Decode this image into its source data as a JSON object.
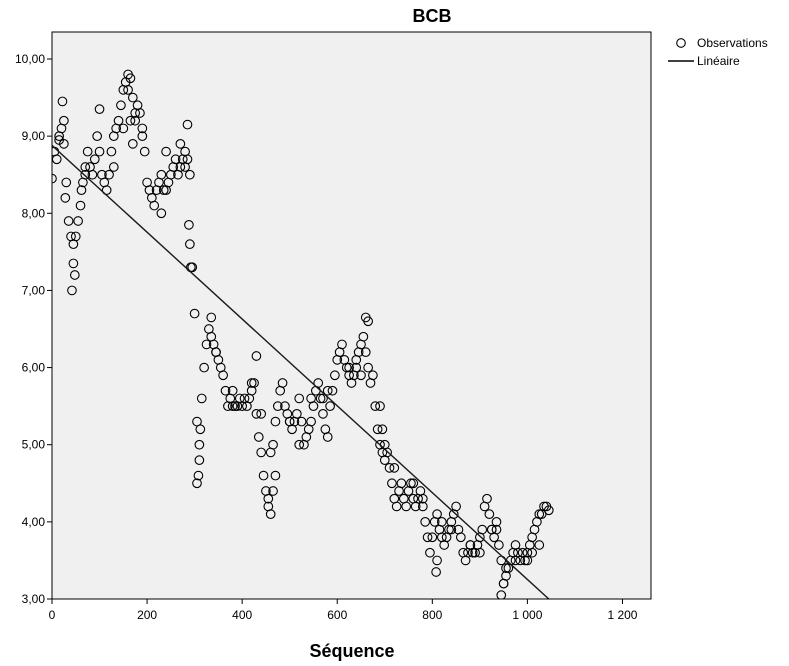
{
  "chart_data": {
    "type": "scatter",
    "title": "BCB",
    "xlabel": "Séquence",
    "ylabel": "",
    "xlim": [
      0,
      1260
    ],
    "ylim": [
      3.0,
      10.35
    ],
    "x_ticks": [
      0,
      200,
      400,
      600,
      800,
      1000,
      1200
    ],
    "x_tick_labels": [
      "0",
      "200",
      "400",
      "600",
      "800",
      "1 000",
      "1 200"
    ],
    "y_ticks": [
      3,
      4,
      5,
      6,
      7,
      8,
      9,
      10
    ],
    "y_tick_labels": [
      "3,00",
      "4,00",
      "5,00",
      "6,00",
      "7,00",
      "8,00",
      "9,00",
      "10,00"
    ],
    "grid": false,
    "legend_position": "right",
    "legend": {
      "observations": "Observations",
      "linear": "Linéaire"
    },
    "colors": {
      "plot_background": "#f0f0f0",
      "marker": "#000000",
      "fit_line": "#1a1a1a"
    },
    "series": [
      {
        "name": "Observations",
        "kind": "points",
        "x": [
          0,
          5,
          10,
          15,
          20,
          25,
          30,
          35,
          40,
          45,
          50,
          55,
          60,
          65,
          70,
          75,
          80,
          85,
          90,
          95,
          100,
          105,
          110,
          115,
          120,
          125,
          130,
          135,
          140,
          145,
          150,
          155,
          160,
          165,
          170,
          175,
          180,
          185,
          190,
          195,
          200,
          205,
          210,
          215,
          220,
          225,
          230,
          235,
          240,
          245,
          250,
          255,
          260,
          265,
          270,
          275,
          280,
          285,
          290,
          295,
          300,
          305,
          310,
          315,
          320,
          325,
          330,
          335,
          340,
          345,
          350,
          355,
          360,
          365,
          370,
          375,
          380,
          385,
          390,
          395,
          400,
          405,
          410,
          415,
          420,
          425,
          430,
          435,
          440,
          445,
          450,
          455,
          460,
          465,
          470,
          475,
          480,
          485,
          490,
          495,
          500,
          505,
          510,
          515,
          520,
          525,
          530,
          535,
          540,
          545,
          550,
          555,
          560,
          565,
          570,
          575,
          580,
          585,
          590,
          595,
          600,
          605,
          610,
          615,
          620,
          625,
          630,
          635,
          640,
          645,
          650,
          655,
          660,
          665,
          670,
          675,
          680,
          685,
          690,
          695,
          700,
          705,
          710,
          715,
          720,
          725,
          730,
          735,
          740,
          745,
          750,
          755,
          760,
          765,
          770,
          775,
          780,
          785,
          790,
          795,
          800,
          805,
          810,
          815,
          820,
          825,
          830,
          835,
          840,
          845,
          850,
          855,
          860,
          865,
          870,
          875,
          880,
          885,
          890,
          895,
          900,
          905,
          910,
          915,
          920,
          925,
          930,
          935,
          940,
          945,
          950,
          955,
          960,
          965,
          970,
          975,
          980,
          985,
          990,
          995,
          1000,
          1005,
          1010,
          1015,
          1020,
          1025,
          1030,
          1035,
          1040,
          1045,
          22,
          25,
          28,
          42,
          45,
          48,
          100,
          160,
          165,
          170,
          285,
          288,
          290,
          292,
          305,
          308,
          310,
          312,
          430,
          440,
          455,
          460,
          465,
          470,
          660,
          665,
          690,
          695,
          808,
          810,
          945,
          950,
          955,
          15,
          62,
          70,
          130,
          150,
          175,
          190,
          230,
          240,
          270,
          280,
          335,
          345,
          380,
          420,
          500,
          520,
          545,
          570,
          580,
          625,
          640,
          650,
          700,
          720,
          760,
          780,
          820,
          840,
          880,
          900,
          925,
          935,
          975,
          1000,
          1010,
          1025
        ],
        "y": [
          8.45,
          8.8,
          8.7,
          9.0,
          9.1,
          8.9,
          8.4,
          7.9,
          7.7,
          7.6,
          7.7,
          7.9,
          8.1,
          8.4,
          8.6,
          8.8,
          8.6,
          8.5,
          8.7,
          9.0,
          8.8,
          8.5,
          8.4,
          8.3,
          8.5,
          8.8,
          9.0,
          9.1,
          9.2,
          9.4,
          9.6,
          9.7,
          9.6,
          9.2,
          8.9,
          9.2,
          9.4,
          9.3,
          9.1,
          8.8,
          8.4,
          8.3,
          8.2,
          8.1,
          8.3,
          8.4,
          8.5,
          8.3,
          8.3,
          8.4,
          8.5,
          8.6,
          8.7,
          8.5,
          8.6,
          8.7,
          8.8,
          8.7,
          8.5,
          7.3,
          6.7,
          5.3,
          5.0,
          5.6,
          6.0,
          6.3,
          6.5,
          6.4,
          6.3,
          6.2,
          6.1,
          6.0,
          5.9,
          5.7,
          5.5,
          5.6,
          5.7,
          5.5,
          5.5,
          5.6,
          5.5,
          5.6,
          5.5,
          5.6,
          5.7,
          5.8,
          5.4,
          5.1,
          4.9,
          4.6,
          4.4,
          4.3,
          4.9,
          5.0,
          5.3,
          5.5,
          5.7,
          5.8,
          5.5,
          5.4,
          5.3,
          5.2,
          5.3,
          5.4,
          5.6,
          5.3,
          5.0,
          5.1,
          5.2,
          5.3,
          5.5,
          5.7,
          5.8,
          5.6,
          5.4,
          5.2,
          5.1,
          5.5,
          5.7,
          5.9,
          6.1,
          6.2,
          6.3,
          6.1,
          6.0,
          5.9,
          5.8,
          5.9,
          6.0,
          6.2,
          6.3,
          6.4,
          6.2,
          6.0,
          5.8,
          5.9,
          5.5,
          5.2,
          5.0,
          4.9,
          4.8,
          4.9,
          4.7,
          4.5,
          4.3,
          4.2,
          4.4,
          4.5,
          4.3,
          4.2,
          4.4,
          4.5,
          4.3,
          4.2,
          4.3,
          4.4,
          4.2,
          4.0,
          3.8,
          3.6,
          3.8,
          4.0,
          4.1,
          3.9,
          3.8,
          3.7,
          3.8,
          3.9,
          4.0,
          4.1,
          4.2,
          3.9,
          3.8,
          3.6,
          3.5,
          3.6,
          3.7,
          3.6,
          3.6,
          3.7,
          3.8,
          3.9,
          4.2,
          4.3,
          4.1,
          3.9,
          3.8,
          3.9,
          3.7,
          3.5,
          3.2,
          3.3,
          3.4,
          3.5,
          3.6,
          3.7,
          3.6,
          3.5,
          3.6,
          3.5,
          3.6,
          3.7,
          3.8,
          3.9,
          4.0,
          4.1,
          4.1,
          4.2,
          4.2,
          4.15,
          9.45,
          9.2,
          8.2,
          7.0,
          7.35,
          7.2,
          9.35,
          9.8,
          9.75,
          9.5,
          9.15,
          7.85,
          7.6,
          7.3,
          4.5,
          4.6,
          4.8,
          5.2,
          6.15,
          5.4,
          4.2,
          4.1,
          4.4,
          4.6,
          6.65,
          6.6,
          5.5,
          5.2,
          3.35,
          3.5,
          3.05,
          3.2,
          3.4,
          8.95,
          8.3,
          8.5,
          8.6,
          9.1,
          9.3,
          9.0,
          8.0,
          8.8,
          8.9,
          8.6,
          6.65,
          6.2,
          5.5,
          5.8,
          5.3,
          5.0,
          5.6,
          5.6,
          5.7,
          6.0,
          6.1,
          5.9,
          5.0,
          4.7,
          4.5,
          4.3,
          4.0,
          3.9,
          3.7,
          3.6,
          3.9,
          4.0,
          3.5,
          3.5,
          3.6,
          3.7
        ]
      },
      {
        "name": "Linéaire",
        "kind": "line",
        "x": [
          0,
          1045
        ],
        "y": [
          8.88,
          3.0
        ]
      }
    ]
  }
}
